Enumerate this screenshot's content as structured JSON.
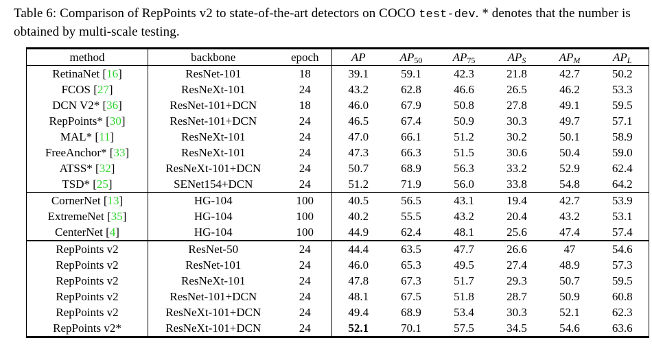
{
  "caption": {
    "before_code": "Table 6: Comparison of RepPoints v2 to state-of-the-art detectors on COCO ",
    "code": "test-dev",
    "after_code": ". * denotes that the number is obtained by multi-scale testing."
  },
  "colors": {
    "citation_green": "#2fd32f",
    "text": "#000000",
    "background": "#ffffff"
  },
  "table": {
    "citation_brackets": {
      "open": "[",
      "close": "]"
    },
    "headers": {
      "method": "method",
      "backbone": "backbone",
      "epoch": "epoch",
      "ap_cols": [
        {
          "base": "AP",
          "sub": ""
        },
        {
          "base": "AP",
          "sub": "50"
        },
        {
          "base": "AP",
          "sub": "75"
        },
        {
          "base": "AP",
          "sub": "S"
        },
        {
          "base": "AP",
          "sub": "M"
        },
        {
          "base": "AP",
          "sub": "L"
        }
      ]
    },
    "groups": [
      {
        "rows": [
          {
            "method": "RetinaNet",
            "cite": "16",
            "backbone": "ResNet-101",
            "epoch": "18",
            "metrics": [
              "39.1",
              "59.1",
              "42.3",
              "21.8",
              "42.7",
              "50.2"
            ]
          },
          {
            "method": "FCOS",
            "cite": "27",
            "backbone": "ResNeXt-101",
            "epoch": "24",
            "metrics": [
              "43.2",
              "62.8",
              "46.6",
              "26.5",
              "46.2",
              "53.3"
            ]
          },
          {
            "method": "DCN V2*",
            "cite": "36",
            "backbone": "ResNet-101+DCN",
            "epoch": "18",
            "metrics": [
              "46.0",
              "67.9",
              "50.8",
              "27.8",
              "49.1",
              "59.5"
            ]
          },
          {
            "method": "RepPoints*",
            "cite": "30",
            "backbone": "ResNet-101+DCN",
            "epoch": "24",
            "metrics": [
              "46.5",
              "67.4",
              "50.9",
              "30.3",
              "49.7",
              "57.1"
            ]
          },
          {
            "method": "MAL*",
            "cite": "11",
            "backbone": "ResNeXt-101",
            "epoch": "24",
            "metrics": [
              "47.0",
              "66.1",
              "51.2",
              "30.2",
              "50.1",
              "58.9"
            ]
          },
          {
            "method": "FreeAnchor*",
            "cite": "33",
            "backbone": "ResNeXt-101",
            "epoch": "24",
            "metrics": [
              "47.3",
              "66.3",
              "51.5",
              "30.6",
              "50.4",
              "59.0"
            ]
          },
          {
            "method": "ATSS*",
            "cite": "32",
            "backbone": "ResNeXt-101+DCN",
            "epoch": "24",
            "metrics": [
              "50.7",
              "68.9",
              "56.3",
              "33.2",
              "52.9",
              "62.4"
            ]
          },
          {
            "method": "TSD*",
            "cite": "25",
            "backbone": "SENet154+DCN",
            "epoch": "24",
            "metrics": [
              "51.2",
              "71.9",
              "56.0",
              "33.8",
              "54.8",
              "64.2"
            ]
          }
        ]
      },
      {
        "rows": [
          {
            "method": "CornerNet",
            "cite": "13",
            "backbone": "HG-104",
            "epoch": "100",
            "metrics": [
              "40.5",
              "56.5",
              "43.1",
              "19.4",
              "42.7",
              "53.9"
            ]
          },
          {
            "method": "ExtremeNet",
            "cite": "35",
            "backbone": "HG-104",
            "epoch": "100",
            "metrics": [
              "40.2",
              "55.5",
              "43.2",
              "20.4",
              "43.2",
              "53.1"
            ]
          },
          {
            "method": "CenterNet",
            "cite": "4",
            "backbone": "HG-104",
            "epoch": "100",
            "metrics": [
              "44.9",
              "62.4",
              "48.1",
              "25.6",
              "47.4",
              "57.4"
            ]
          }
        ]
      },
      {
        "rows": [
          {
            "method": "RepPoints v2",
            "cite": null,
            "backbone": "ResNet-50",
            "epoch": "24",
            "metrics": [
              "44.4",
              "63.5",
              "47.7",
              "26.6",
              "47",
              "54.6"
            ]
          },
          {
            "method": "RepPoints v2",
            "cite": null,
            "backbone": "ResNet-101",
            "epoch": "24",
            "metrics": [
              "46.0",
              "65.3",
              "49.5",
              "27.4",
              "48.9",
              "57.3"
            ]
          },
          {
            "method": "RepPoints v2",
            "cite": null,
            "backbone": "ResNeXt-101",
            "epoch": "24",
            "metrics": [
              "47.8",
              "67.3",
              "51.7",
              "29.3",
              "50.7",
              "59.5"
            ]
          },
          {
            "method": "RepPoints v2",
            "cite": null,
            "backbone": "ResNet-101+DCN",
            "epoch": "24",
            "metrics": [
              "48.1",
              "67.5",
              "51.8",
              "28.7",
              "50.9",
              "60.8"
            ]
          },
          {
            "method": "RepPoints v2",
            "cite": null,
            "backbone": "ResNeXt-101+DCN",
            "epoch": "24",
            "metrics": [
              "49.4",
              "68.9",
              "53.4",
              "30.3",
              "52.1",
              "62.3"
            ]
          },
          {
            "method": "RepPoints v2*",
            "cite": null,
            "backbone": "ResNeXt-101+DCN",
            "epoch": "24",
            "metrics": [
              "52.1",
              "70.1",
              "57.5",
              "34.5",
              "54.6",
              "63.6"
            ],
            "bold_cols": [
              0
            ]
          }
        ]
      }
    ]
  }
}
